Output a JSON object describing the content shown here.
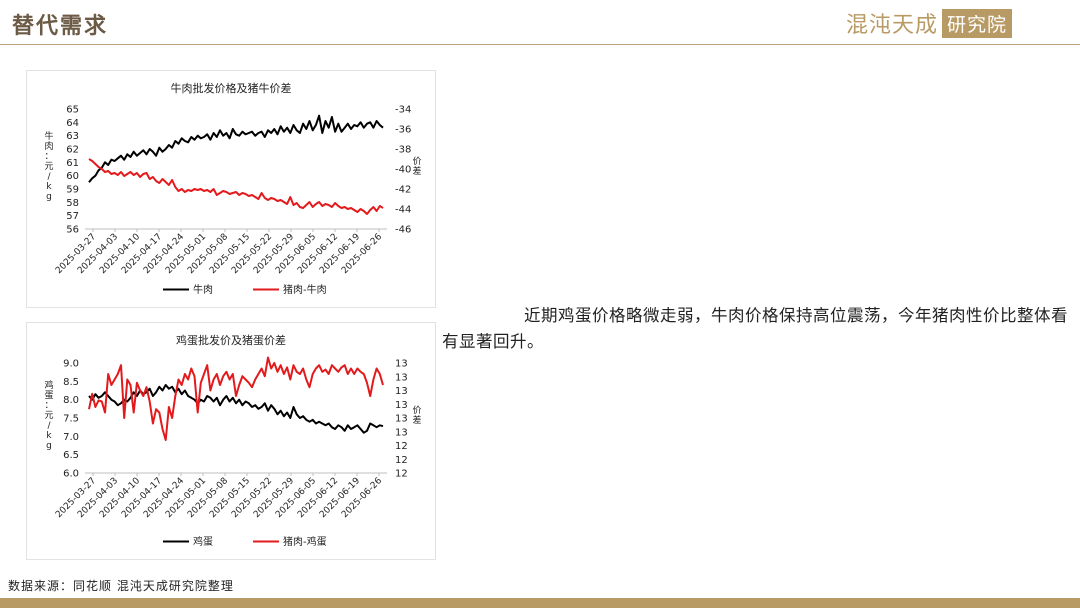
{
  "header": {
    "title": "替代需求",
    "logo_text": "混沌天成",
    "logo_box": "研究院"
  },
  "description": "近期鸡蛋价格略微走弱，牛肉价格保持高位震荡，今年猪肉性价比整体看有显著回升。",
  "source": "数据来源：同花顺 混沌天成研究院整理",
  "colors": {
    "accent": "#b89a64",
    "series_black": "#000000",
    "series_red": "#e31a1c"
  },
  "chart_data": [
    {
      "type": "line",
      "title": "牛肉批发价格及猪牛价差",
      "ylabel": "牛肉：元/kg",
      "y2label": "价差",
      "ylim": [
        56,
        65
      ],
      "y2lim": [
        -46,
        -34
      ],
      "yticks": [
        56,
        57,
        58,
        59,
        60,
        61,
        62,
        63,
        64,
        65
      ],
      "y2ticks": [
        -46,
        -44,
        -42,
        -40,
        -38,
        -36,
        -34
      ],
      "x_tick_labels": [
        "2025-03-27",
        "2025-04-03",
        "2025-04-10",
        "2025-04-17",
        "2025-04-24",
        "2025-05-01",
        "2025-05-08",
        "2025-05-15",
        "2025-05-22",
        "2025-05-29",
        "2025-06-05",
        "2025-06-12",
        "2025-06-19",
        "2025-06-26"
      ],
      "legend_position": "bottom",
      "series": [
        {
          "name": "牛肉",
          "axis": "left",
          "color": "#000000",
          "values": [
            59.5,
            59.8,
            60.0,
            60.4,
            60.6,
            61.0,
            60.8,
            61.2,
            61.1,
            61.3,
            61.5,
            61.2,
            61.6,
            61.4,
            61.8,
            61.5,
            61.7,
            61.9,
            61.6,
            62.0,
            61.8,
            61.5,
            62.1,
            61.8,
            62.0,
            62.3,
            62.1,
            62.6,
            62.4,
            62.8,
            62.6,
            62.5,
            62.9,
            62.7,
            63.0,
            62.8,
            62.9,
            63.1,
            62.7,
            63.2,
            62.9,
            63.4,
            63.0,
            63.2,
            62.8,
            63.5,
            63.1,
            63.0,
            63.3,
            63.1,
            63.2,
            63.3,
            63.0,
            63.2,
            63.3,
            62.9,
            63.4,
            63.2,
            63.5,
            63.1,
            63.7,
            63.3,
            63.6,
            63.2,
            63.8,
            63.4,
            63.2,
            63.9,
            63.5,
            64.1,
            63.4,
            63.8,
            64.5,
            63.2,
            64.1,
            63.6,
            64.4,
            63.3,
            63.9,
            63.3,
            63.6,
            63.9,
            63.5,
            63.8,
            63.7,
            64.0,
            63.6,
            63.9,
            64.0,
            63.6,
            64.1,
            63.8,
            63.6
          ]
        },
        {
          "name": "猪肉-牛肉",
          "axis": "right",
          "color": "#e31a1c",
          "values": [
            -39.0,
            -39.2,
            -39.5,
            -39.8,
            -40.0,
            -40.3,
            -40.2,
            -40.5,
            -40.4,
            -40.6,
            -40.3,
            -40.7,
            -40.5,
            -40.3,
            -40.6,
            -40.4,
            -40.8,
            -40.5,
            -40.4,
            -41.0,
            -40.8,
            -41.2,
            -41.4,
            -41.0,
            -41.3,
            -41.6,
            -41.1,
            -41.8,
            -42.2,
            -42.0,
            -42.3,
            -42.1,
            -42.2,
            -42.0,
            -42.1,
            -42.0,
            -42.2,
            -42.1,
            -42.3,
            -42.0,
            -42.6,
            -42.4,
            -42.2,
            -42.3,
            -42.5,
            -42.4,
            -42.3,
            -42.6,
            -42.4,
            -42.5,
            -42.7,
            -42.6,
            -42.8,
            -43.0,
            -42.4,
            -42.9,
            -43.1,
            -42.9,
            -43.0,
            -43.2,
            -43.1,
            -43.3,
            -43.5,
            -42.8,
            -43.6,
            -43.4,
            -43.8,
            -43.9,
            -43.6,
            -43.3,
            -43.8,
            -43.5,
            -43.3,
            -43.7,
            -43.5,
            -43.6,
            -43.8,
            -43.4,
            -43.7,
            -43.9,
            -43.8,
            -44.0,
            -43.9,
            -44.1,
            -44.3,
            -44.0,
            -44.2,
            -44.5,
            -44.1,
            -43.8,
            -44.2,
            -43.7,
            -43.9
          ]
        }
      ]
    },
    {
      "type": "line",
      "title": "鸡蛋批发价及猪蛋价差",
      "ylabel": "鸡蛋：元/kg",
      "y2label": "价差",
      "ylim": [
        6.0,
        9.0
      ],
      "y2lim": [
        12,
        13
      ],
      "yticks": [
        "6.0",
        "6.5",
        "7.0",
        "7.5",
        "8.0",
        "8.5",
        "9.0"
      ],
      "y2ticks": [
        "12",
        "12",
        "12",
        "13",
        "13",
        "13",
        "13",
        "13",
        "13"
      ],
      "x_tick_labels": [
        "2025-03-27",
        "2025-04-03",
        "2025-04-10",
        "2025-04-17",
        "2025-04-24",
        "2025-05-01",
        "2025-05-08",
        "2025-05-15",
        "2025-05-22",
        "2025-05-29",
        "2025-06-05",
        "2025-06-12",
        "2025-06-19",
        "2025-06-26"
      ],
      "legend_position": "bottom",
      "series": [
        {
          "name": "鸡蛋",
          "axis": "left",
          "color": "#000000",
          "values": [
            8.1,
            8.0,
            8.15,
            8.05,
            8.1,
            8.2,
            8.1,
            8.0,
            7.95,
            7.85,
            7.9,
            8.0,
            7.95,
            8.05,
            8.2,
            8.1,
            8.25,
            8.15,
            8.2,
            8.3,
            8.1,
            8.2,
            8.35,
            8.25,
            8.4,
            8.3,
            8.35,
            8.2,
            8.3,
            8.15,
            8.25,
            8.1,
            8.05,
            8.0,
            7.9,
            8.0,
            7.95,
            8.1,
            8.05,
            7.95,
            8.05,
            7.85,
            8.0,
            8.1,
            7.95,
            8.05,
            7.9,
            8.0,
            7.85,
            7.95,
            7.9,
            7.8,
            7.85,
            7.75,
            7.8,
            7.9,
            7.7,
            7.85,
            7.75,
            7.6,
            7.7,
            7.55,
            7.65,
            7.5,
            7.8,
            7.6,
            7.5,
            7.55,
            7.45,
            7.4,
            7.45,
            7.35,
            7.4,
            7.35,
            7.3,
            7.35,
            7.25,
            7.2,
            7.3,
            7.25,
            7.15,
            7.3,
            7.2,
            7.25,
            7.3,
            7.2,
            7.1,
            7.15,
            7.35,
            7.3,
            7.25,
            7.3,
            7.28
          ]
        },
        {
          "name": "猪肉-鸡蛋",
          "axis": "right",
          "color": "#e31a1c",
          "values": [
            12.58,
            12.72,
            12.6,
            12.66,
            12.65,
            12.55,
            12.9,
            12.8,
            12.85,
            12.9,
            12.98,
            12.5,
            12.85,
            12.8,
            12.55,
            12.82,
            12.75,
            12.7,
            12.78,
            12.65,
            12.45,
            12.58,
            12.55,
            12.4,
            12.3,
            12.6,
            12.5,
            12.7,
            12.85,
            12.8,
            12.9,
            12.85,
            12.95,
            12.88,
            12.55,
            12.82,
            12.9,
            12.98,
            12.75,
            12.85,
            12.9,
            12.8,
            12.88,
            12.92,
            12.85,
            12.9,
            12.7,
            12.8,
            12.88,
            12.85,
            12.82,
            12.78,
            12.85,
            12.9,
            12.95,
            12.88,
            13.05,
            12.95,
            13.0,
            12.92,
            12.98,
            12.9,
            12.96,
            12.85,
            12.98,
            12.92,
            12.9,
            12.95,
            12.85,
            12.78,
            12.9,
            12.95,
            12.98,
            12.92,
            12.94,
            12.9,
            12.98,
            12.95,
            12.92,
            12.96,
            12.98,
            12.9,
            12.95,
            12.9,
            12.95,
            12.92,
            12.9,
            12.82,
            12.7,
            12.85,
            12.95,
            12.9,
            12.8
          ]
        }
      ]
    }
  ]
}
